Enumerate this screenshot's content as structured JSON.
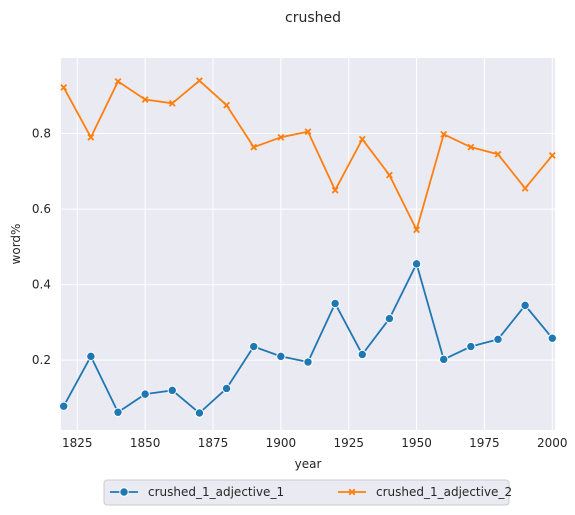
{
  "chart_data": {
    "type": "line",
    "title": "crushed",
    "xlabel": "year",
    "ylabel": "word%",
    "xlim": [
      1819,
      2001
    ],
    "ylim": [
      0.015,
      1.0
    ],
    "x_ticks": [
      1825,
      1850,
      1875,
      1900,
      1925,
      1950,
      1975,
      2000
    ],
    "y_ticks": [
      0.2,
      0.4,
      0.6,
      0.8
    ],
    "grid": true,
    "legend_position": "bottom-center",
    "x": [
      1820,
      1830,
      1840,
      1850,
      1860,
      1870,
      1880,
      1890,
      1900,
      1910,
      1920,
      1930,
      1940,
      1950,
      1960,
      1970,
      1980,
      1990,
      2000
    ],
    "series": [
      {
        "name": "crushed_1_adjective_1",
        "color": "#1f77b4",
        "marker": "circle",
        "values": [
          0.078,
          0.21,
          0.062,
          0.11,
          0.12,
          0.06,
          0.125,
          0.236,
          0.21,
          0.195,
          0.35,
          0.215,
          0.31,
          0.455,
          0.202,
          0.236,
          0.255,
          0.345,
          0.258
        ]
      },
      {
        "name": "crushed_1_adjective_2",
        "color": "#ff7f0e",
        "marker": "x",
        "values": [
          0.922,
          0.79,
          0.938,
          0.89,
          0.88,
          0.94,
          0.875,
          0.764,
          0.79,
          0.805,
          0.65,
          0.785,
          0.69,
          0.545,
          0.798,
          0.764,
          0.745,
          0.655,
          0.742
        ]
      }
    ]
  }
}
